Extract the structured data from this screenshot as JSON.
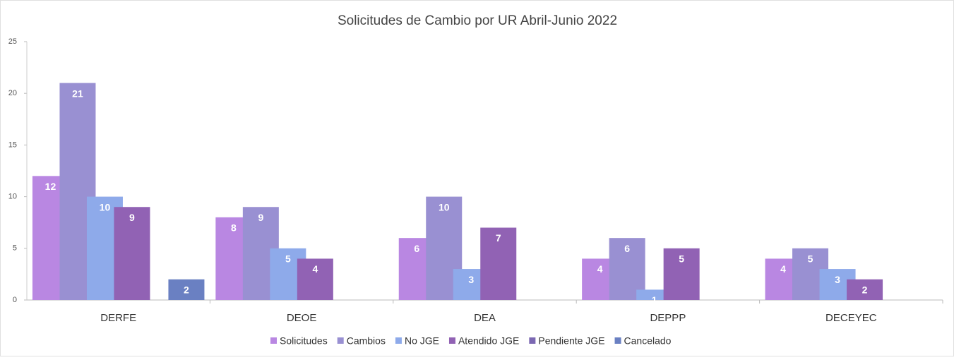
{
  "chart_data": {
    "type": "bar",
    "title": "Solicitudes de Cambio por UR Abril-Junio 2022",
    "categories": [
      "DERFE",
      "DEOE",
      "DEA",
      "DEPPP",
      "DECEYEC"
    ],
    "series": [
      {
        "name": "Solicitudes",
        "color": "#b987e2",
        "values": [
          12,
          8,
          6,
          4,
          4
        ]
      },
      {
        "name": "Cambios",
        "color": "#9990d2",
        "values": [
          21,
          9,
          10,
          6,
          5
        ]
      },
      {
        "name": "No JGE",
        "color": "#8eaaea",
        "values": [
          10,
          5,
          3,
          1,
          3
        ]
      },
      {
        "name": "Atendido JGE",
        "color": "#9162b4",
        "values": [
          9,
          4,
          7,
          5,
          2
        ]
      },
      {
        "name": "Pendiente JGE",
        "color": "#7b68b2",
        "values": [
          0,
          0,
          0,
          0,
          0
        ]
      },
      {
        "name": "Cancelado",
        "color": "#6a80c2",
        "values": [
          2,
          0,
          0,
          0,
          0
        ]
      }
    ],
    "ylim": [
      0,
      25
    ],
    "yticks": [
      0,
      5,
      10,
      15,
      20,
      25
    ],
    "legend": "bottom"
  }
}
